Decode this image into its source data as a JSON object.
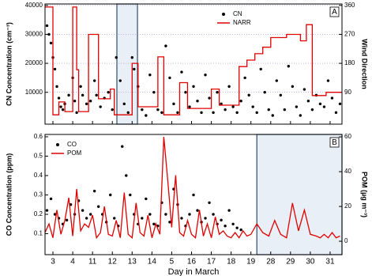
{
  "chart_data": [
    {
      "type": "combo",
      "ylabel": "CN Concentration (cm⁻³)",
      "y2label": "Wind Direction",
      "panel_label": "A",
      "xlim": [
        -0.4,
        14.6
      ],
      "xticks": [
        0,
        1,
        2,
        3,
        4,
        5,
        6,
        7,
        8,
        9,
        10,
        11,
        12,
        13,
        14
      ],
      "show_xtick_labels": false,
      "ylim": [
        -1000,
        40500
      ],
      "yticks": [
        10000,
        20000,
        30000,
        40000
      ],
      "y2lim": [
        -9,
        364.5
      ],
      "y2ticks": [
        90,
        180,
        270,
        360
      ],
      "grid": true,
      "legend": "upper right",
      "highlight": [
        3.23,
        4.27
      ],
      "series": [
        {
          "name": "CN",
          "kind": "scatter",
          "color": "#000000",
          "x": [
            -0.3,
            -0.2,
            -0.1,
            0,
            0.1,
            0.2,
            0.3,
            0.4,
            0.5,
            0.6,
            0.8,
            1.0,
            1.1,
            1.2,
            1.4,
            1.5,
            1.7,
            1.9,
            2.1,
            2.2,
            2.4,
            2.6,
            2.8,
            3.0,
            3.2,
            3.4,
            3.6,
            3.8,
            4.0,
            4.1,
            4.3,
            4.5,
            4.7,
            4.9,
            5.1,
            5.3,
            5.5,
            5.7,
            5.9,
            6.1,
            6.3,
            6.5,
            6.7,
            6.9,
            7.1,
            7.3,
            7.5,
            7.7,
            7.9,
            8.1,
            8.3,
            8.5,
            8.7,
            8.9,
            9.1,
            9.3,
            9.5,
            9.7,
            9.9,
            10.1,
            10.3,
            10.5,
            10.7,
            10.9,
            11.1,
            11.3,
            11.5,
            11.7,
            11.9,
            12.1,
            12.3,
            12.5,
            12.7,
            12.9,
            13.1,
            13.3,
            13.5,
            13.7,
            13.9,
            14.1,
            14.3,
            14.5
          ],
          "values": [
            33000,
            30000,
            27000,
            22000,
            18000,
            12000,
            8000,
            5000,
            4000,
            6000,
            9000,
            15000,
            7000,
            3000,
            12000,
            9000,
            6000,
            7000,
            14000,
            9000,
            5000,
            8000,
            10000,
            4000,
            22000,
            14000,
            6000,
            3000,
            22000,
            18000,
            12000,
            4000,
            2000,
            16000,
            10000,
            4000,
            3000,
            26000,
            15000,
            6000,
            3000,
            17000,
            10000,
            5000,
            12000,
            7000,
            3000,
            16000,
            8000,
            3000,
            10000,
            6000,
            4000,
            12000,
            5000,
            3000,
            7000,
            15000,
            9000,
            5000,
            3000,
            18000,
            10000,
            4000,
            2000,
            14000,
            9000,
            4000,
            19000,
            12000,
            5000,
            2000,
            11000,
            7000,
            4000,
            9000,
            6000,
            5000,
            14000,
            8000,
            3000,
            6000
          ]
        },
        {
          "name": "NARR",
          "kind": "line",
          "axis": "y2",
          "color": "#e00000",
          "x": [
            -0.4,
            0.0,
            0.0,
            0.3,
            0.3,
            0.6,
            0.6,
            1.0,
            1.0,
            1.2,
            1.2,
            1.3,
            1.3,
            1.8,
            1.8,
            2.3,
            2.3,
            2.9,
            2.9,
            3.1,
            3.1,
            4.0,
            4.0,
            4.3,
            4.3,
            5.3,
            5.3,
            5.6,
            5.6,
            6.4,
            6.4,
            6.8,
            6.8,
            8.0,
            8.0,
            8.4,
            8.4,
            9.4,
            9.4,
            9.8,
            9.8,
            10.2,
            10.2,
            10.6,
            10.6,
            11.0,
            11.0,
            11.8,
            11.8,
            12.5,
            12.5,
            12.8,
            12.8,
            13.1,
            13.1,
            13.8,
            13.8,
            14.6
          ],
          "values": [
            355,
            355,
            20,
            20,
            60,
            60,
            30,
            30,
            355,
            355,
            160,
            160,
            30,
            30,
            270,
            270,
            70,
            70,
            100,
            100,
            20,
            20,
            180,
            180,
            45,
            45,
            200,
            200,
            20,
            20,
            120,
            120,
            40,
            40,
            100,
            100,
            50,
            50,
            170,
            170,
            190,
            190,
            210,
            210,
            230,
            230,
            260,
            260,
            270,
            270,
            250,
            250,
            300,
            300,
            80,
            80,
            90,
            90
          ]
        }
      ]
    },
    {
      "type": "combo",
      "xlabel": "Day in March",
      "ylabel": "CO Concentration (ppm)",
      "y2label": "POM (µg m⁻³)",
      "panel_label": "B",
      "xlim": [
        -0.4,
        14.6
      ],
      "xticks": [
        {
          "value": 0,
          "label": "3"
        },
        {
          "value": 1,
          "label": "4"
        },
        {
          "value": 2,
          "label": "11"
        },
        {
          "value": 3,
          "label": "12"
        },
        {
          "value": 4,
          "label": "13"
        },
        {
          "value": 5,
          "label": "14"
        },
        {
          "value": 6,
          "label": "5"
        },
        {
          "value": 7,
          "label": "16"
        },
        {
          "value": 8,
          "label": "17"
        },
        {
          "value": 9,
          "label": "18"
        },
        {
          "value": 10,
          "label": "19"
        },
        {
          "value": 11,
          "label": "28"
        },
        {
          "value": 12,
          "label": "29"
        },
        {
          "value": 13,
          "label": "30"
        },
        {
          "value": 14,
          "label": "31"
        }
      ],
      "show_xtick_labels": true,
      "ylim": [
        -0.008,
        0.612
      ],
      "yticks": [
        0.1,
        0.2,
        0.3,
        0.4,
        0.5,
        0.6
      ],
      "y2lim": [
        -7.7,
        61.4
      ],
      "y2ticks": [
        0,
        20,
        40,
        60
      ],
      "grid": false,
      "legend": "upper left",
      "highlight": [
        10.3,
        14.6
      ],
      "series": [
        {
          "name": "CO",
          "kind": "scatter",
          "color": "#000000",
          "x": [
            -0.3,
            -0.1,
            0.1,
            0.3,
            0.5,
            0.7,
            0.9,
            1.1,
            1.3,
            1.5,
            1.7,
            1.9,
            2.1,
            2.3,
            2.5,
            2.7,
            2.9,
            3.1,
            3.3,
            3.5,
            3.7,
            3.9,
            4.1,
            4.3,
            4.5,
            4.7,
            4.9,
            5.1,
            5.3,
            5.5,
            5.7,
            5.9,
            6.1,
            6.3,
            6.5,
            6.7,
            6.9,
            7.1,
            7.3,
            7.5,
            7.7,
            7.9,
            8.1,
            8.3,
            8.5,
            8.7,
            8.9,
            9.1,
            9.3,
            9.5
          ],
          "values": [
            0.22,
            0.28,
            0.2,
            0.18,
            0.15,
            0.17,
            0.25,
            0.2,
            0.27,
            0.22,
            0.18,
            0.2,
            0.32,
            0.24,
            0.2,
            0.16,
            0.3,
            0.18,
            0.14,
            0.55,
            0.4,
            0.3,
            0.2,
            0.15,
            0.18,
            0.28,
            0.2,
            0.15,
            0.14,
            0.26,
            0.2,
            0.16,
            0.33,
            0.25,
            0.18,
            0.14,
            0.2,
            0.3,
            0.22,
            0.16,
            0.18,
            0.26,
            0.2,
            0.15,
            0.17,
            0.14,
            0.22,
            0.15,
            0.13,
            0.12
          ]
        },
        {
          "name": "POM",
          "kind": "line",
          "axis": "y2",
          "color": "#e00000",
          "x": [
            -0.4,
            -0.2,
            0,
            0.2,
            0.4,
            0.6,
            0.8,
            1.0,
            1.2,
            1.4,
            1.6,
            1.8,
            2.0,
            2.2,
            2.4,
            2.6,
            2.8,
            3.0,
            3.2,
            3.4,
            3.6,
            3.8,
            4.0,
            4.2,
            4.4,
            4.6,
            4.8,
            5.0,
            5.2,
            5.4,
            5.6,
            5.8,
            6.0,
            6.2,
            6.4,
            6.6,
            6.8,
            7.0,
            7.2,
            7.4,
            7.6,
            7.8,
            8.0,
            8.2,
            8.4,
            8.6,
            8.8,
            9.0,
            9.2,
            9.4,
            9.6,
            9.8,
            10.0,
            10.3,
            10.6,
            10.9,
            11.2,
            11.5,
            11.8,
            12.1,
            12.4,
            12.7,
            13.0,
            13.3,
            13.5,
            13.7,
            13.9,
            14.1,
            14.3,
            14.5
          ],
          "values": [
            5,
            10,
            2,
            18,
            4,
            12,
            25,
            3,
            30,
            6,
            10,
            8,
            15,
            2,
            5,
            20,
            4,
            3,
            12,
            2,
            28,
            4,
            2,
            22,
            5,
            3,
            15,
            2,
            10,
            4,
            60,
            35,
            8,
            38,
            5,
            3,
            12,
            4,
            2,
            18,
            3,
            10,
            2,
            14,
            4,
            6,
            3,
            2,
            5,
            2,
            6,
            3,
            4,
            10,
            5,
            3,
            12,
            4,
            2,
            22,
            6,
            18,
            4,
            3,
            2,
            4,
            2,
            5,
            2,
            3
          ]
        }
      ]
    }
  ]
}
